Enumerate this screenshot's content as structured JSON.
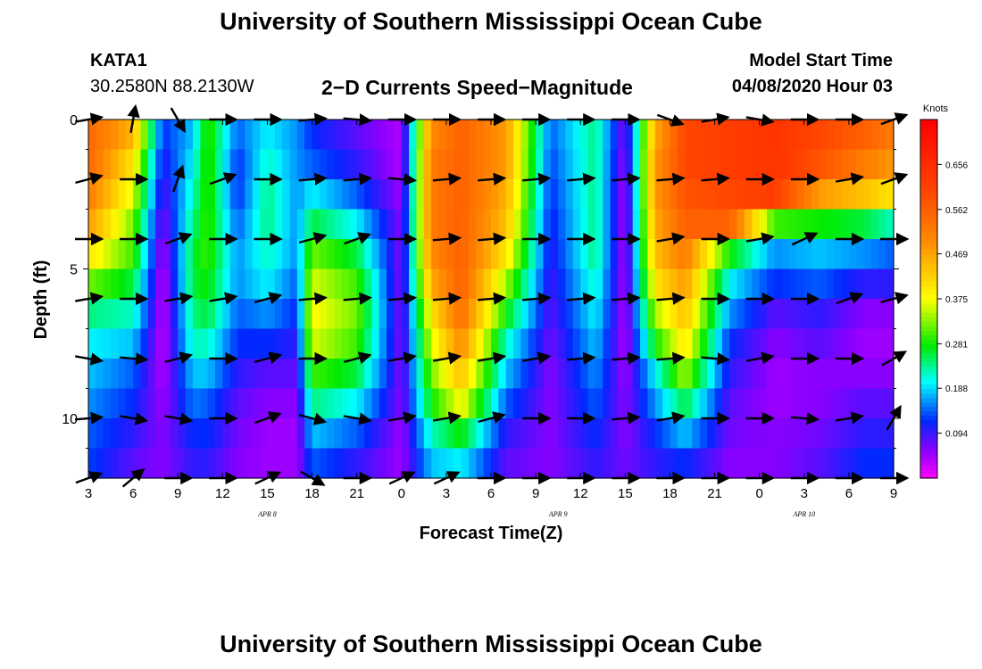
{
  "page": {
    "title_top": "University of Southern Mississippi Ocean Cube",
    "title_bottom": "University of Southern Mississippi Ocean Cube",
    "station_id": "KATA1",
    "station_coords": "30.2580N 88.2130W",
    "subtitle": "2−D Currents Speed−Magnitude",
    "model_start_label": "Model Start Time",
    "model_start_value": "04/08/2020 Hour 03"
  },
  "chart_data": {
    "type": "heatmap",
    "title": "2−D Currents Speed−Magnitude",
    "xlabel": "Forecast Time(Z)",
    "ylabel": "Depth (ft)",
    "x_tick_labels": [
      "3",
      "6",
      "9",
      "12",
      "15",
      "18",
      "21",
      "0",
      "3",
      "6",
      "9",
      "12",
      "15",
      "18",
      "21",
      "0",
      "3",
      "6",
      "9"
    ],
    "date_labels": [
      {
        "text": "APR 8",
        "at_tick": 4
      },
      {
        "text": "APR 9",
        "at_tick": 10.5
      },
      {
        "text": "APR 10",
        "at_tick": 16
      }
    ],
    "xlim_hours": [
      0,
      54
    ],
    "ylim_depth_ft": [
      0,
      12
    ],
    "y_tick_labels": [
      {
        "depth": 0,
        "label": "0"
      },
      {
        "depth": 5,
        "label": "5"
      },
      {
        "depth": 10,
        "label": "10"
      }
    ],
    "depth_levels_ft": [
      0,
      2,
      4,
      6,
      8,
      10,
      12
    ],
    "colorbar": {
      "units": "Knots",
      "range": [
        0,
        0.75
      ],
      "labels": [
        "0.656",
        "0.562",
        "0.469",
        "0.375",
        "0.281",
        "0.188",
        "0.094"
      ],
      "label_values": [
        0.656,
        0.562,
        0.469,
        0.375,
        0.281,
        0.188,
        0.094
      ]
    },
    "speed_profiles_knots": [
      {
        "hour": 0,
        "speed": [
          0.55,
          0.55,
          0.52,
          0.48,
          0.4,
          0.32,
          0.24,
          0.2,
          0.18,
          0.16,
          0.14,
          0.13
        ]
      },
      {
        "hour": 3,
        "speed": [
          0.45,
          0.4,
          0.36,
          0.32,
          0.3,
          0.26,
          0.22,
          0.18,
          0.14,
          0.12,
          0.1,
          0.08
        ]
      },
      {
        "hour": 5,
        "speed": [
          0.12,
          0.1,
          0.08,
          0.06,
          0.04,
          0.03,
          0.03,
          0.03,
          0.04,
          0.05,
          0.06,
          0.06
        ]
      },
      {
        "hour": 7,
        "speed": [
          0.18,
          0.2,
          0.22,
          0.24,
          0.26,
          0.26,
          0.24,
          0.22,
          0.18,
          0.15,
          0.12,
          0.1
        ]
      },
      {
        "hour": 8,
        "speed": [
          0.3,
          0.3,
          0.3,
          0.3,
          0.3,
          0.28,
          0.26,
          0.22,
          0.18,
          0.14,
          0.12,
          0.1
        ]
      },
      {
        "hour": 10,
        "speed": [
          0.14,
          0.12,
          0.12,
          0.14,
          0.16,
          0.16,
          0.14,
          0.12,
          0.1,
          0.08,
          0.07,
          0.06
        ]
      },
      {
        "hour": 12,
        "speed": [
          0.2,
          0.22,
          0.24,
          0.24,
          0.22,
          0.2,
          0.16,
          0.12,
          0.08,
          0.06,
          0.05,
          0.05
        ]
      },
      {
        "hour": 14,
        "speed": [
          0.16,
          0.16,
          0.16,
          0.16,
          0.16,
          0.14,
          0.12,
          0.1,
          0.08,
          0.06,
          0.05,
          0.05
        ]
      },
      {
        "hour": 15,
        "speed": [
          0.12,
          0.14,
          0.2,
          0.26,
          0.32,
          0.36,
          0.38,
          0.36,
          0.3,
          0.24,
          0.18,
          0.14
        ]
      },
      {
        "hour": 18,
        "speed": [
          0.08,
          0.1,
          0.14,
          0.2,
          0.26,
          0.3,
          0.32,
          0.3,
          0.26,
          0.2,
          0.14,
          0.1
        ]
      },
      {
        "hour": 21,
        "speed": [
          0.04,
          0.04,
          0.05,
          0.06,
          0.06,
          0.06,
          0.06,
          0.06,
          0.06,
          0.06,
          0.05,
          0.05
        ]
      },
      {
        "hour": 23,
        "speed": [
          0.5,
          0.52,
          0.52,
          0.52,
          0.5,
          0.46,
          0.4,
          0.36,
          0.32,
          0.28,
          0.22,
          0.18
        ]
      },
      {
        "hour": 25,
        "speed": [
          0.56,
          0.56,
          0.56,
          0.56,
          0.56,
          0.56,
          0.54,
          0.5,
          0.44,
          0.38,
          0.28,
          0.2
        ]
      },
      {
        "hour": 28,
        "speed": [
          0.48,
          0.48,
          0.46,
          0.44,
          0.4,
          0.34,
          0.28,
          0.22,
          0.18,
          0.14,
          0.1,
          0.08
        ]
      },
      {
        "hour": 31,
        "speed": [
          0.14,
          0.13,
          0.12,
          0.11,
          0.1,
          0.09,
          0.08,
          0.07,
          0.06,
          0.06,
          0.06,
          0.06
        ]
      },
      {
        "hour": 34,
        "speed": [
          0.24,
          0.24,
          0.24,
          0.24,
          0.24,
          0.22,
          0.2,
          0.18,
          0.16,
          0.14,
          0.12,
          0.1
        ]
      },
      {
        "hour": 36,
        "speed": [
          0.06,
          0.05,
          0.04,
          0.04,
          0.04,
          0.04,
          0.04,
          0.04,
          0.05,
          0.06,
          0.06,
          0.07
        ]
      },
      {
        "hour": 38,
        "speed": [
          0.46,
          0.48,
          0.48,
          0.46,
          0.44,
          0.4,
          0.34,
          0.28,
          0.2,
          0.16,
          0.12,
          0.1
        ]
      },
      {
        "hour": 40,
        "speed": [
          0.6,
          0.6,
          0.58,
          0.56,
          0.52,
          0.48,
          0.44,
          0.4,
          0.34,
          0.26,
          0.18,
          0.12
        ]
      },
      {
        "hour": 43,
        "speed": [
          0.62,
          0.62,
          0.6,
          0.56,
          0.28,
          0.2,
          0.16,
          0.12,
          0.1,
          0.08,
          0.07,
          0.06
        ]
      },
      {
        "hour": 46,
        "speed": [
          0.64,
          0.64,
          0.62,
          0.3,
          0.16,
          0.12,
          0.08,
          0.06,
          0.05,
          0.05,
          0.06,
          0.06
        ]
      },
      {
        "hour": 49,
        "speed": [
          0.6,
          0.58,
          0.48,
          0.28,
          0.18,
          0.14,
          0.1,
          0.08,
          0.06,
          0.06,
          0.07,
          0.08
        ]
      },
      {
        "hour": 52,
        "speed": [
          0.56,
          0.52,
          0.44,
          0.26,
          0.16,
          0.1,
          0.06,
          0.05,
          0.06,
          0.08,
          0.1,
          0.12
        ]
      },
      {
        "hour": 54,
        "speed": [
          0.52,
          0.48,
          0.4,
          0.22,
          0.14,
          0.1,
          0.06,
          0.05,
          0.06,
          0.08,
          0.1,
          0.12
        ]
      }
    ],
    "vector_hours": [
      0,
      3,
      6,
      9,
      12,
      15,
      18,
      21,
      24,
      27,
      30,
      33,
      36,
      39,
      42,
      45,
      48,
      51,
      54
    ],
    "vector_angles_deg": [
      [
        10,
        80,
        -60,
        0,
        0,
        5,
        -5,
        0,
        0,
        0,
        0,
        0,
        0,
        -20,
        10,
        -10,
        0,
        0,
        20
      ],
      [
        15,
        0,
        70,
        20,
        0,
        5,
        5,
        -5,
        5,
        5,
        5,
        5,
        5,
        5,
        5,
        0,
        0,
        10,
        20
      ],
      [
        0,
        0,
        20,
        0,
        0,
        15,
        20,
        0,
        5,
        5,
        0,
        0,
        0,
        10,
        0,
        10,
        25,
        0,
        0
      ],
      [
        10,
        0,
        10,
        10,
        15,
        5,
        5,
        5,
        5,
        5,
        5,
        5,
        5,
        5,
        0,
        0,
        0,
        20,
        15
      ],
      [
        -10,
        -5,
        15,
        0,
        15,
        0,
        15,
        10,
        10,
        10,
        10,
        5,
        5,
        5,
        -5,
        10,
        0,
        0,
        30
      ],
      [
        5,
        -10,
        -10,
        0,
        20,
        -15,
        -10,
        10,
        10,
        15,
        0,
        0,
        5,
        10,
        0,
        0,
        -5,
        10,
        60
      ],
      [
        20,
        40,
        0,
        0,
        25,
        -30,
        0,
        25,
        25,
        0,
        0,
        0,
        0,
        0,
        0,
        0,
        0,
        0,
        0
      ]
    ]
  }
}
